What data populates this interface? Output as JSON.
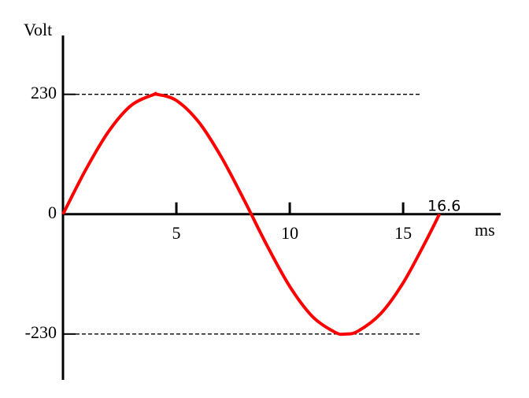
{
  "chart_data": {
    "type": "line",
    "y_label": "Volt",
    "x_label": "ms",
    "annotation": "16.6",
    "x": [
      0,
      1,
      2,
      3,
      4,
      4.15,
      5,
      6,
      7,
      8,
      9,
      10,
      11,
      12,
      12.45,
      13,
      14,
      15,
      16,
      16.6
    ],
    "series": [
      {
        "color": "#ff0000",
        "values": [
          0,
          85,
          158,
          208.5,
          229.6,
          230,
          218.2,
          176,
          108.4,
          26.1,
          -60.3,
          -138.6,
          -196.4,
          -226.7,
          -230,
          -224.7,
          -191.4,
          -131.8,
          -51.8,
          0
        ]
      }
    ],
    "xlim": [
      0,
      19.3
    ],
    "ylim": [
      -318,
      343
    ],
    "xticks": [
      5,
      10,
      15
    ],
    "yticks": [
      -230,
      0,
      230
    ]
  }
}
